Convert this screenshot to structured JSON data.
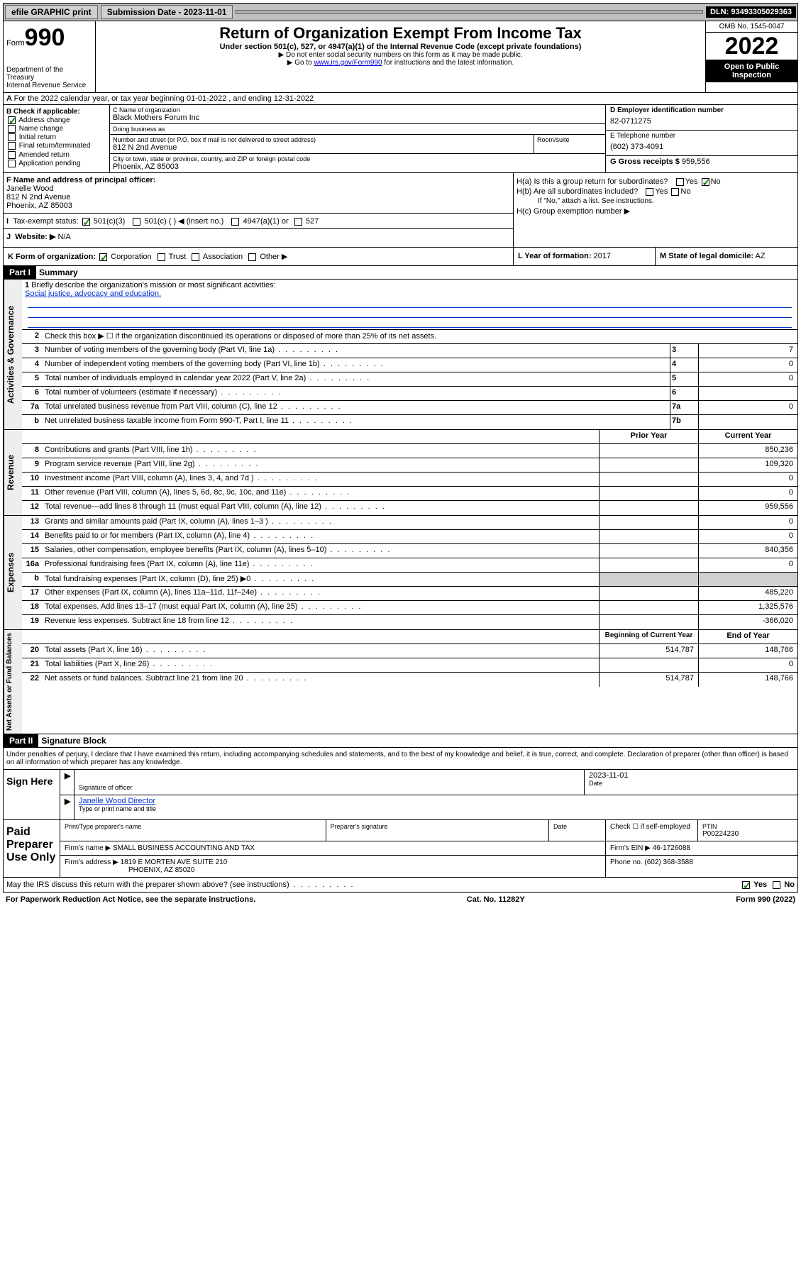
{
  "topbar": {
    "efile": "efile GRAPHIC print",
    "submission_label": "Submission Date - 2023-11-01",
    "dln": "DLN: 93493305029363"
  },
  "header": {
    "form_label": "Form",
    "form_number": "990",
    "dept": "Department of the Treasury",
    "irs": "Internal Revenue Service",
    "title": "Return of Organization Exempt From Income Tax",
    "subtitle": "Under section 501(c), 527, or 4947(a)(1) of the Internal Revenue Code (except private foundations)",
    "note1": "▶ Do not enter social security numbers on this form as it may be made public.",
    "note2_prefix": "▶ Go to ",
    "note2_link": "www.irs.gov/Form990",
    "note2_suffix": " for instructions and the latest information.",
    "omb": "OMB No. 1545-0047",
    "year": "2022",
    "open": "Open to Public Inspection"
  },
  "row_a": "For the 2022 calendar year, or tax year beginning 01-01-2022   , and ending 12-31-2022",
  "section_b": {
    "label": "B Check if applicable:",
    "address_change": "Address change",
    "name_change": "Name change",
    "initial_return": "Initial return",
    "final_return": "Final return/terminated",
    "amended": "Amended return",
    "application": "Application pending"
  },
  "section_c": {
    "name_lbl": "C Name of organization",
    "name": "Black Mothers Forum Inc",
    "dba_lbl": "Doing business as",
    "dba": "",
    "street_lbl": "Number and street (or P.O. box if mail is not delivered to street address)",
    "street": "812 N 2nd Avenue",
    "room_lbl": "Room/suite",
    "city_lbl": "City or town, state or province, country, and ZIP or foreign postal code",
    "city": "Phoenix, AZ  85003"
  },
  "section_d": {
    "ein_lbl": "D Employer identification number",
    "ein": "82-0711275",
    "phone_lbl": "E Telephone number",
    "phone": "(602) 373-4091",
    "gross_lbl": "G Gross receipts $",
    "gross": "959,556"
  },
  "section_f": {
    "lbl": "F Name and address of principal officer:",
    "name": "Janelle Wood",
    "addr1": "812 N 2nd Avenue",
    "addr2": "Phoenix, AZ  85003"
  },
  "section_h": {
    "ha": "H(a)  Is this a group return for subordinates?",
    "hb": "H(b)  Are all subordinates included?",
    "hb_note": "If \"No,\" attach a list. See instructions.",
    "hc": "H(c)  Group exemption number ▶",
    "yes": "Yes",
    "no": "No"
  },
  "row_i": {
    "lbl": "Tax-exempt status:",
    "opt1": "501(c)(3)",
    "opt2": "501(c) (  ) ◀ (insert no.)",
    "opt3": "4947(a)(1) or",
    "opt4": "527"
  },
  "row_j": {
    "lbl": "Website: ▶",
    "val": "N/A"
  },
  "row_k": {
    "lbl": "K Form of organization:",
    "corp": "Corporation",
    "trust": "Trust",
    "assoc": "Association",
    "other": "Other ▶"
  },
  "row_l": {
    "lbl": "L Year of formation:",
    "val": "2017"
  },
  "row_m": {
    "lbl": "M State of legal domicile:",
    "val": "AZ"
  },
  "part1": {
    "hdr": "Part I",
    "title": "Summary",
    "line1_lbl": "Briefly describe the organization's mission or most significant activities:",
    "line1_val": "Social justice, advocacy and education.",
    "line2": "Check this box ▶ ☐  if the organization discontinued its operations or disposed of more than 25% of its net assets.",
    "lines": [
      {
        "n": "3",
        "d": "Number of voting members of the governing body (Part VI, line 1a)",
        "box": "3",
        "v": "7"
      },
      {
        "n": "4",
        "d": "Number of independent voting members of the governing body (Part VI, line 1b)",
        "box": "4",
        "v": "0"
      },
      {
        "n": "5",
        "d": "Total number of individuals employed in calendar year 2022 (Part V, line 2a)",
        "box": "5",
        "v": "0"
      },
      {
        "n": "6",
        "d": "Total number of volunteers (estimate if necessary)",
        "box": "6",
        "v": ""
      },
      {
        "n": "7a",
        "d": "Total unrelated business revenue from Part VIII, column (C), line 12",
        "box": "7a",
        "v": "0"
      },
      {
        "n": "b",
        "d": "Net unrelated business taxable income from Form 990-T, Part I, line 11",
        "box": "7b",
        "v": ""
      }
    ],
    "prior_year": "Prior Year",
    "current_year": "Current Year",
    "rev_lines": [
      {
        "n": "8",
        "d": "Contributions and grants (Part VIII, line 1h)",
        "p": "",
        "c": "850,236"
      },
      {
        "n": "9",
        "d": "Program service revenue (Part VIII, line 2g)",
        "p": "",
        "c": "109,320"
      },
      {
        "n": "10",
        "d": "Investment income (Part VIII, column (A), lines 3, 4, and 7d )",
        "p": "",
        "c": "0"
      },
      {
        "n": "11",
        "d": "Other revenue (Part VIII, column (A), lines 5, 6d, 8c, 9c, 10c, and 11e)",
        "p": "",
        "c": "0"
      },
      {
        "n": "12",
        "d": "Total revenue—add lines 8 through 11 (must equal Part VIII, column (A), line 12)",
        "p": "",
        "c": "959,556"
      }
    ],
    "exp_lines": [
      {
        "n": "13",
        "d": "Grants and similar amounts paid (Part IX, column (A), lines 1–3 )",
        "p": "",
        "c": "0"
      },
      {
        "n": "14",
        "d": "Benefits paid to or for members (Part IX, column (A), line 4)",
        "p": "",
        "c": "0"
      },
      {
        "n": "15",
        "d": "Salaries, other compensation, employee benefits (Part IX, column (A), lines 5–10)",
        "p": "",
        "c": "840,356"
      },
      {
        "n": "16a",
        "d": "Professional fundraising fees (Part IX, column (A), line 11e)",
        "p": "",
        "c": "0"
      },
      {
        "n": "b",
        "d": "Total fundraising expenses (Part IX, column (D), line 25) ▶0",
        "p": "grey",
        "c": "grey"
      },
      {
        "n": "17",
        "d": "Other expenses (Part IX, column (A), lines 11a–11d, 11f–24e)",
        "p": "",
        "c": "485,220"
      },
      {
        "n": "18",
        "d": "Total expenses. Add lines 13–17 (must equal Part IX, column (A), line 25)",
        "p": "",
        "c": "1,325,576"
      },
      {
        "n": "19",
        "d": "Revenue less expenses. Subtract line 18 from line 12",
        "p": "",
        "c": "-366,020"
      }
    ],
    "begin_year": "Beginning of Current Year",
    "end_year": "End of Year",
    "net_lines": [
      {
        "n": "20",
        "d": "Total assets (Part X, line 16)",
        "p": "514,787",
        "c": "148,766"
      },
      {
        "n": "21",
        "d": "Total liabilities (Part X, line 26)",
        "p": "",
        "c": "0"
      },
      {
        "n": "22",
        "d": "Net assets or fund balances. Subtract line 21 from line 20",
        "p": "514,787",
        "c": "148,766"
      }
    ]
  },
  "side_labels": {
    "gov": "Activities & Governance",
    "rev": "Revenue",
    "exp": "Expenses",
    "net": "Net Assets or Fund Balances"
  },
  "part2": {
    "hdr": "Part II",
    "title": "Signature Block",
    "intro": "Under penalties of perjury, I declare that I have examined this return, including accompanying schedules and statements, and to the best of my knowledge and belief, it is true, correct, and complete. Declaration of preparer (other than officer) is based on all information of which preparer has any knowledge.",
    "sign_here": "Sign Here",
    "sig_officer": "Signature of officer",
    "date": "Date",
    "sig_date": "2023-11-01",
    "name_title": "Janelle Wood  Director",
    "name_title_lbl": "Type or print name and title",
    "paid": "Paid Preparer Use Only",
    "prep_name_lbl": "Print/Type preparer's name",
    "prep_sig_lbl": "Preparer's signature",
    "date_lbl": "Date",
    "check_lbl": "Check ☐ if self-employed",
    "ptin_lbl": "PTIN",
    "ptin": "P00224230",
    "firm_name_lbl": "Firm's name    ▶",
    "firm_name": "SMALL BUSINESS ACCOUNTING AND TAX",
    "firm_ein_lbl": "Firm's EIN ▶",
    "firm_ein": "46-1726088",
    "firm_addr_lbl": "Firm's address ▶",
    "firm_addr": "1819 E MORTEN AVE SUITE 210",
    "firm_city": "PHOENIX, AZ  85020",
    "firm_phone_lbl": "Phone no.",
    "firm_phone": "(602) 368-3588",
    "discuss": "May the IRS discuss this return with the preparer shown above? (see instructions)",
    "yes": "Yes",
    "no": "No"
  },
  "footer": {
    "left": "For Paperwork Reduction Act Notice, see the separate instructions.",
    "mid": "Cat. No. 11282Y",
    "right": "Form 990 (2022)"
  }
}
